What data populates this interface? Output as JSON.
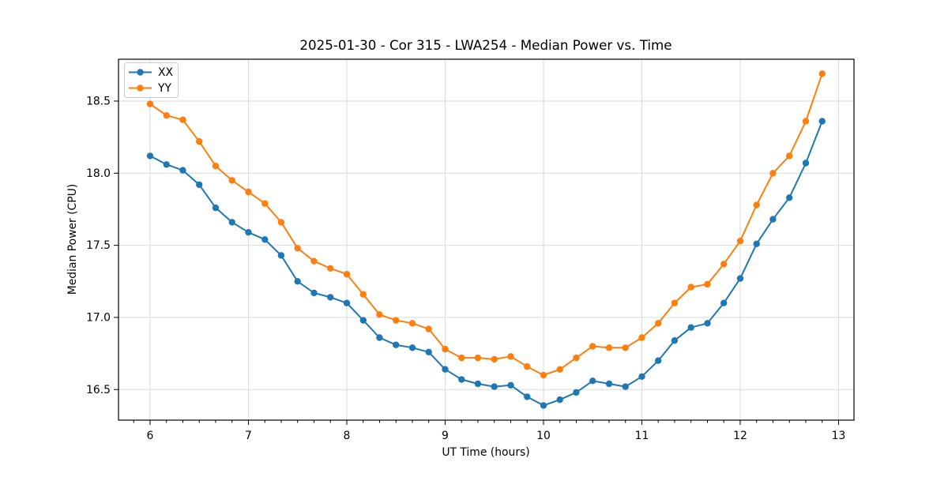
{
  "chart_data": {
    "type": "line",
    "title": "2025-01-30 - Cor 315 - LWA254 - Median Power vs. Time",
    "xlabel": "UT Time (hours)",
    "ylabel": "Median Power (CPU)",
    "xlim": [
      5.679,
      13.157
    ],
    "ylim": [
      16.288,
      18.79
    ],
    "grid": true,
    "legend_position": "upper-left",
    "x_ticks": [
      6,
      7,
      8,
      9,
      10,
      11,
      12,
      13
    ],
    "x_tick_labels": [
      "6",
      "7",
      "8",
      "9",
      "10",
      "11",
      "12",
      "13"
    ],
    "x_minor_tick_step": 0.166667,
    "y_ticks": [
      16.5,
      17.0,
      17.5,
      18.0,
      18.5
    ],
    "y_tick_labels": [
      "16.5",
      "17.0",
      "17.5",
      "18.0",
      "18.5"
    ],
    "x": [
      6.0,
      6.167,
      6.333,
      6.5,
      6.667,
      6.833,
      7.0,
      7.167,
      7.333,
      7.5,
      7.667,
      7.833,
      8.0,
      8.167,
      8.333,
      8.5,
      8.667,
      8.833,
      9.0,
      9.167,
      9.333,
      9.5,
      9.667,
      9.833,
      10.0,
      10.167,
      10.333,
      10.5,
      10.667,
      10.833,
      11.0,
      11.167,
      11.333,
      11.5,
      11.667,
      11.833,
      12.0,
      12.167,
      12.333,
      12.5,
      12.667,
      12.833
    ],
    "series": [
      {
        "name": "XX",
        "color": "#1f77b4",
        "values": [
          18.12,
          18.06,
          18.02,
          17.92,
          17.76,
          17.66,
          17.59,
          17.54,
          17.43,
          17.25,
          17.17,
          17.14,
          17.1,
          16.98,
          16.86,
          16.81,
          16.79,
          16.76,
          16.64,
          16.57,
          16.54,
          16.52,
          16.53,
          16.45,
          16.39,
          16.43,
          16.48,
          16.56,
          16.54,
          16.52,
          16.59,
          16.7,
          16.84,
          16.93,
          16.96,
          17.1,
          17.27,
          17.51,
          17.68,
          17.83,
          18.07,
          18.36
        ]
      },
      {
        "name": "YY",
        "color": "#ff7f0e",
        "values": [
          18.48,
          18.4,
          18.37,
          18.22,
          18.05,
          17.95,
          17.87,
          17.79,
          17.66,
          17.48,
          17.39,
          17.34,
          17.3,
          17.16,
          17.02,
          16.98,
          16.96,
          16.92,
          16.78,
          16.72,
          16.72,
          16.71,
          16.73,
          16.66,
          16.6,
          16.64,
          16.72,
          16.8,
          16.79,
          16.79,
          16.86,
          16.96,
          17.1,
          17.21,
          17.23,
          17.37,
          17.53,
          17.78,
          18.0,
          18.12,
          18.36,
          18.69
        ]
      }
    ]
  },
  "style": {
    "grid_color": "#d9d9d9",
    "spine_color": "#000000",
    "tick_color": "#000000",
    "background": "#ffffff"
  }
}
